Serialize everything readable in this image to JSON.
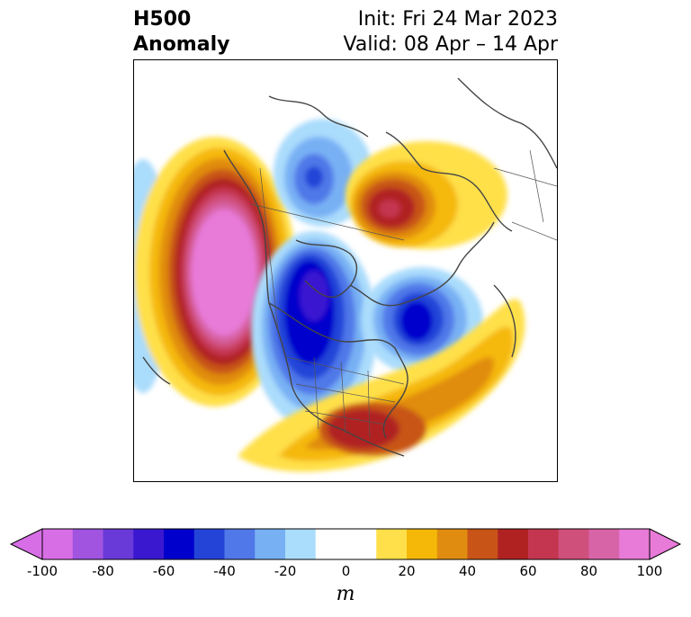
{
  "title": {
    "left_line1": "H500",
    "left_line2": "Anomaly",
    "right_line1": "Init: Fri 24 Mar 2023",
    "right_line2": "Valid: 08 Apr – 14 Apr"
  },
  "colorbar": {
    "unit_label": "m",
    "ticks": [
      "-100",
      "-80",
      "-60",
      "-40",
      "-20",
      "0",
      "20",
      "40",
      "60",
      "80",
      "100"
    ],
    "levels": [
      -100,
      -90,
      -80,
      -70,
      -60,
      -50,
      -40,
      -30,
      -20,
      -10,
      10,
      20,
      30,
      40,
      50,
      60,
      70,
      80,
      90,
      100
    ],
    "colors": [
      "#d86ee6",
      "#a054e0",
      "#6a3ad8",
      "#3a18d0",
      "#0000cc",
      "#2444d8",
      "#5078e8",
      "#78b0f4",
      "#aadcfc",
      "#ffffff",
      "#ffe04a",
      "#f5b808",
      "#e08c10",
      "#c85418",
      "#b02222",
      "#c43650",
      "#d0507c",
      "#d864a8",
      "#e87ad8"
    ],
    "extend": "both",
    "under_color": "#d86ee6",
    "over_color": "#e87ad8"
  },
  "map": {
    "projection": "north-polar-stereographic",
    "region": "North America and North Pacific",
    "coastline_color": "#444444"
  }
}
